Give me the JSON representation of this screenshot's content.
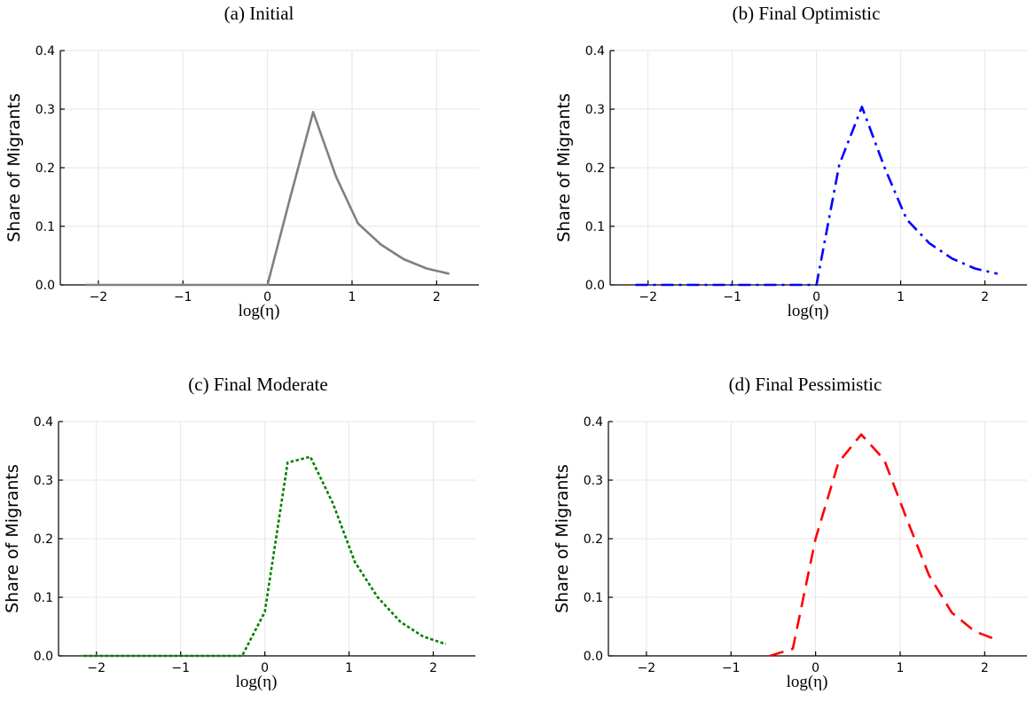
{
  "chart_data": [
    {
      "type": "line",
      "title": "(a) Initial",
      "xlabel": "log(η)",
      "ylabel": "Share of Migrants",
      "xlim": [
        -2.45,
        2.5
      ],
      "ylim": [
        0,
        0.4
      ],
      "xticks": [
        -2,
        -1,
        0,
        1,
        2
      ],
      "yticks": [
        0.0,
        0.1,
        0.2,
        0.3,
        0.4
      ],
      "grid": true,
      "series": [
        {
          "color": "#808080",
          "style": "solid",
          "x": [
            -2.15,
            -1.6,
            -1.07,
            -0.54,
            0.0,
            0.27,
            0.54,
            0.81,
            1.07,
            1.34,
            1.61,
            1.88,
            2.15
          ],
          "y": [
            0.0,
            0.0,
            0.0,
            0.0,
            0.0,
            0.15,
            0.295,
            0.185,
            0.105,
            0.069,
            0.044,
            0.028,
            0.019
          ]
        }
      ]
    },
    {
      "type": "line",
      "title": "(b) Final Optimistic",
      "xlabel": "log(η)",
      "ylabel": "Share of Migrants",
      "xlim": [
        -2.45,
        2.5
      ],
      "ylim": [
        0,
        0.4
      ],
      "xticks": [
        -2,
        -1,
        0,
        1,
        2
      ],
      "yticks": [
        0.0,
        0.1,
        0.2,
        0.3,
        0.4
      ],
      "grid": true,
      "series": [
        {
          "color": "#0000ff",
          "style": "dashdot",
          "x": [
            -2.15,
            -1.6,
            -1.07,
            -0.54,
            0.0,
            0.27,
            0.54,
            0.81,
            1.07,
            1.34,
            1.61,
            1.88,
            2.15
          ],
          "y": [
            0.0,
            0.0,
            0.0,
            0.0,
            0.0,
            0.205,
            0.304,
            0.2,
            0.112,
            0.071,
            0.045,
            0.028,
            0.019
          ]
        }
      ]
    },
    {
      "type": "line",
      "title": "(c) Final Moderate",
      "xlabel": "log(η)",
      "ylabel": "Share of Migrants",
      "xlim": [
        -2.45,
        2.5
      ],
      "ylim": [
        0,
        0.4
      ],
      "xticks": [
        -2,
        -1,
        0,
        1,
        2
      ],
      "yticks": [
        0.0,
        0.1,
        0.2,
        0.3,
        0.4
      ],
      "grid": true,
      "series": [
        {
          "color": "#008000",
          "style": "dotted",
          "x": [
            -2.15,
            -1.6,
            -1.07,
            -0.54,
            -0.27,
            0.0,
            0.27,
            0.54,
            0.81,
            1.07,
            1.34,
            1.61,
            1.88,
            2.15
          ],
          "y": [
            0.0,
            0.0,
            0.0,
            0.0,
            0.0,
            0.075,
            0.33,
            0.34,
            0.26,
            0.16,
            0.1,
            0.058,
            0.033,
            0.02
          ]
        }
      ]
    },
    {
      "type": "line",
      "title": "(d) Final Pessimistic",
      "xlabel": "log(η)",
      "ylabel": "Share of Migrants",
      "xlim": [
        -2.45,
        2.5
      ],
      "ylim": [
        0,
        0.4
      ],
      "xticks": [
        -2,
        -1,
        0,
        1,
        2
      ],
      "yticks": [
        0.0,
        0.1,
        0.2,
        0.3,
        0.4
      ],
      "grid": true,
      "series": [
        {
          "color": "#ff0000",
          "style": "dashed",
          "x": [
            -0.54,
            -0.27,
            0.0,
            0.27,
            0.54,
            0.81,
            1.07,
            1.34,
            1.61,
            1.88,
            2.15
          ],
          "y": [
            0.0,
            0.012,
            0.2,
            0.33,
            0.378,
            0.335,
            0.237,
            0.138,
            0.074,
            0.042,
            0.027
          ]
        }
      ]
    }
  ]
}
